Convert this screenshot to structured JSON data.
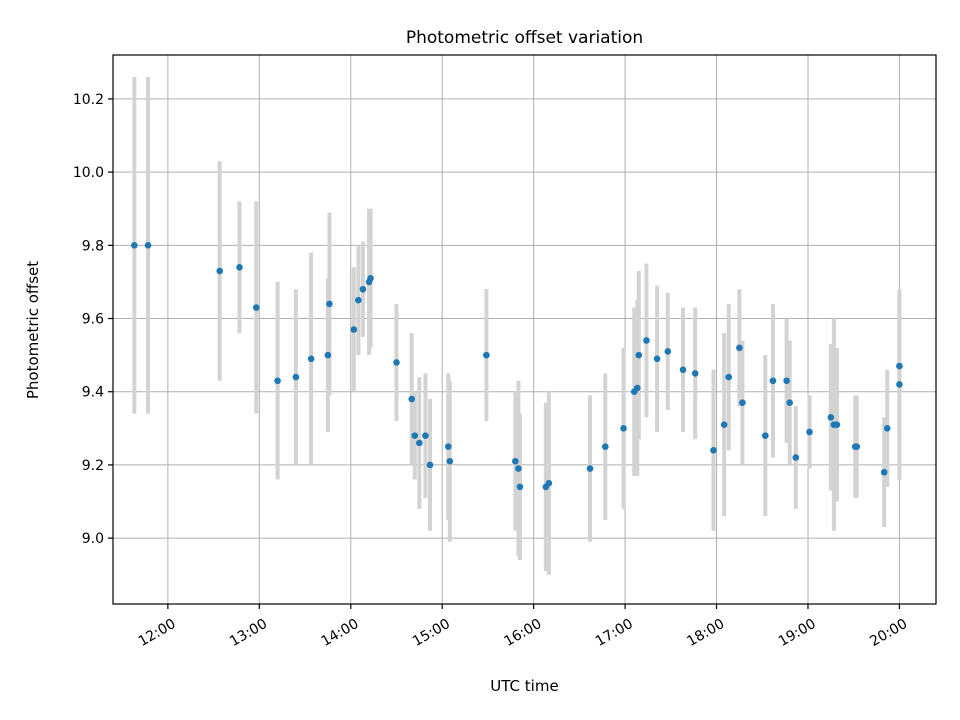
{
  "chart_data": {
    "type": "scatter",
    "title": "Photometric offset variation",
    "xlabel": "UTC time",
    "ylabel": "Photometric offset",
    "xlim": [
      "11:24",
      "20:24"
    ],
    "ylim": [
      8.82,
      10.32
    ],
    "grid": true,
    "x_ticks": [
      "12:00",
      "13:00",
      "14:00",
      "15:00",
      "16:00",
      "17:00",
      "18:00",
      "19:00",
      "20:00"
    ],
    "y_ticks": [
      9.0,
      9.2,
      9.4,
      9.6,
      9.8,
      10.0,
      10.2
    ],
    "colors": {
      "point": "#1f77b4",
      "errorbar": "#d3d3d3"
    },
    "series": [
      {
        "x": [
          "11:38",
          "11:47",
          "12:34",
          "12:47",
          "12:58",
          "13:12",
          "13:24",
          "13:34",
          "13:45",
          "13:46",
          "14:02",
          "14:05",
          "14:08",
          "14:12",
          "14:13",
          "14:30",
          "14:40",
          "14:42",
          "14:45",
          "14:49",
          "14:52",
          "15:04",
          "15:05",
          "15:29",
          "15:48",
          "15:50",
          "15:51",
          "16:08",
          "16:10",
          "16:37",
          "16:47",
          "16:59",
          "17:06",
          "17:08",
          "17:09",
          "17:14",
          "17:21",
          "17:28",
          "17:38",
          "17:46",
          "17:58",
          "18:05",
          "18:08",
          "18:15",
          "18:17",
          "18:32",
          "18:37",
          "18:46",
          "18:48",
          "18:52",
          "19:01",
          "19:15",
          "19:17",
          "19:19",
          "19:31",
          "19:32",
          "19:50",
          "19:52",
          "20:00",
          "20:00"
        ],
        "y": [
          9.8,
          9.8,
          9.73,
          9.74,
          9.63,
          9.43,
          9.44,
          9.49,
          9.5,
          9.64,
          9.57,
          9.65,
          9.68,
          9.7,
          9.71,
          9.48,
          9.38,
          9.28,
          9.26,
          9.28,
          9.2,
          9.25,
          9.21,
          9.5,
          9.21,
          9.19,
          9.14,
          9.14,
          9.15,
          9.19,
          9.25,
          9.3,
          9.4,
          9.41,
          9.5,
          9.54,
          9.49,
          9.51,
          9.46,
          9.45,
          9.24,
          9.31,
          9.44,
          9.52,
          9.37,
          9.28,
          9.43,
          9.43,
          9.37,
          9.22,
          9.29,
          9.33,
          9.31,
          9.31,
          9.25,
          9.25,
          9.18,
          9.3,
          9.42,
          9.47
        ],
        "yerr": [
          0.46,
          0.46,
          0.3,
          0.18,
          0.29,
          0.27,
          0.24,
          0.29,
          0.21,
          0.25,
          0.17,
          0.15,
          0.13,
          0.2,
          0.19,
          0.16,
          0.18,
          0.12,
          0.18,
          0.17,
          0.18,
          0.2,
          0.22,
          0.18,
          0.19,
          0.24,
          0.2,
          0.23,
          0.25,
          0.2,
          0.2,
          0.22,
          0.23,
          0.24,
          0.23,
          0.21,
          0.2,
          0.16,
          0.17,
          0.18,
          0.22,
          0.25,
          0.2,
          0.16,
          0.17,
          0.22,
          0.21,
          0.17,
          0.17,
          0.14,
          0.1,
          0.2,
          0.29,
          0.21,
          0.14,
          0.14,
          0.15,
          0.16,
          0.26,
          0.2
        ]
      }
    ]
  }
}
